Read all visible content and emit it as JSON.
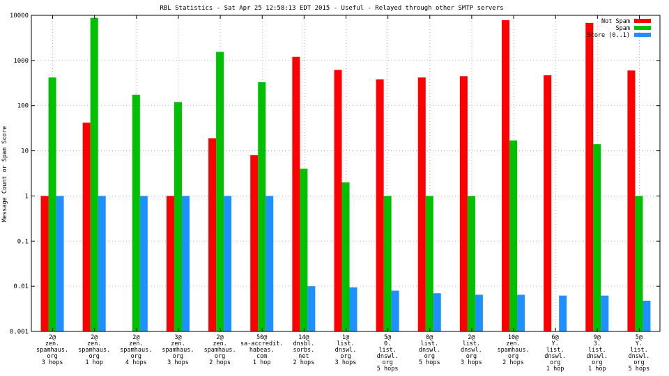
{
  "chart_data": {
    "type": "bar",
    "title": "RBL Statistics - Sat Apr 25 12:58:13 EDT 2015 - Useful - Relayed through other SMTP servers",
    "xlabel": "",
    "ylabel": "Message Count or Spam Score",
    "yscale": "log",
    "ylim": [
      0.001,
      10000
    ],
    "yticks": [
      "0.001",
      "0.01",
      "0.1",
      "1",
      "10",
      "100",
      "1000",
      "10000"
    ],
    "legend_position": "top-right",
    "grid": true,
    "categories": [
      [
        "2@",
        "zen.",
        "spamhaus.",
        "org",
        "3 hops"
      ],
      [
        "2@",
        "zen.",
        "spamhaus.",
        "org",
        "1 hop"
      ],
      [
        "2@",
        "zen.",
        "spamhaus.",
        "org",
        "4 hops"
      ],
      [
        "3@",
        "zen.",
        "spamhaus.",
        "org",
        "3 hops"
      ],
      [
        "2@",
        "zen.",
        "spamhaus.",
        "org",
        "2 hops"
      ],
      [
        "50@",
        "sa-accredit.",
        "habeas.",
        "com",
        "1 hop"
      ],
      [
        "14@",
        "dnsbl.",
        "sorbs.",
        "net",
        "2 hops"
      ],
      [
        "1@",
        "list.",
        "dnswl.",
        "org",
        "3 hops"
      ],
      [
        "5@",
        "0.",
        "list.",
        "dnswl.",
        "org",
        "5 hops"
      ],
      [
        "0@",
        "list.",
        "dnswl.",
        "org",
        "5 hops"
      ],
      [
        "2@",
        "list.",
        "dnswl.",
        "org",
        "3 hops"
      ],
      [
        "10@",
        "zen.",
        "spamhaus.",
        "org",
        "2 hops"
      ],
      [
        "6@",
        "Y.",
        "list.",
        "dnswl.",
        "org",
        "1 hop"
      ],
      [
        "9@",
        "3.",
        "list.",
        "dnswl.",
        "org",
        "1 hop"
      ],
      [
        "5@",
        "Y.",
        "list.",
        "dnswl.",
        "org",
        "5 hops"
      ]
    ],
    "series": [
      {
        "name": "Not Spam",
        "color": "#ff0000",
        "values": [
          1,
          42,
          null,
          1,
          19,
          8,
          1200,
          620,
          380,
          420,
          450,
          7800,
          470,
          6800,
          600
        ]
      },
      {
        "name": "Spam",
        "color": "#00c000",
        "values": [
          420,
          8800,
          175,
          120,
          1550,
          330,
          4,
          2,
          1,
          1,
          1,
          17,
          null,
          14,
          1
        ]
      },
      {
        "name": "Score (0..1)",
        "color": "#1e90ff",
        "values": [
          1,
          1,
          1,
          1,
          1,
          1,
          0.01,
          0.0095,
          0.008,
          0.007,
          0.0065,
          0.0065,
          0.0062,
          0.0062,
          0.0048
        ]
      }
    ]
  }
}
